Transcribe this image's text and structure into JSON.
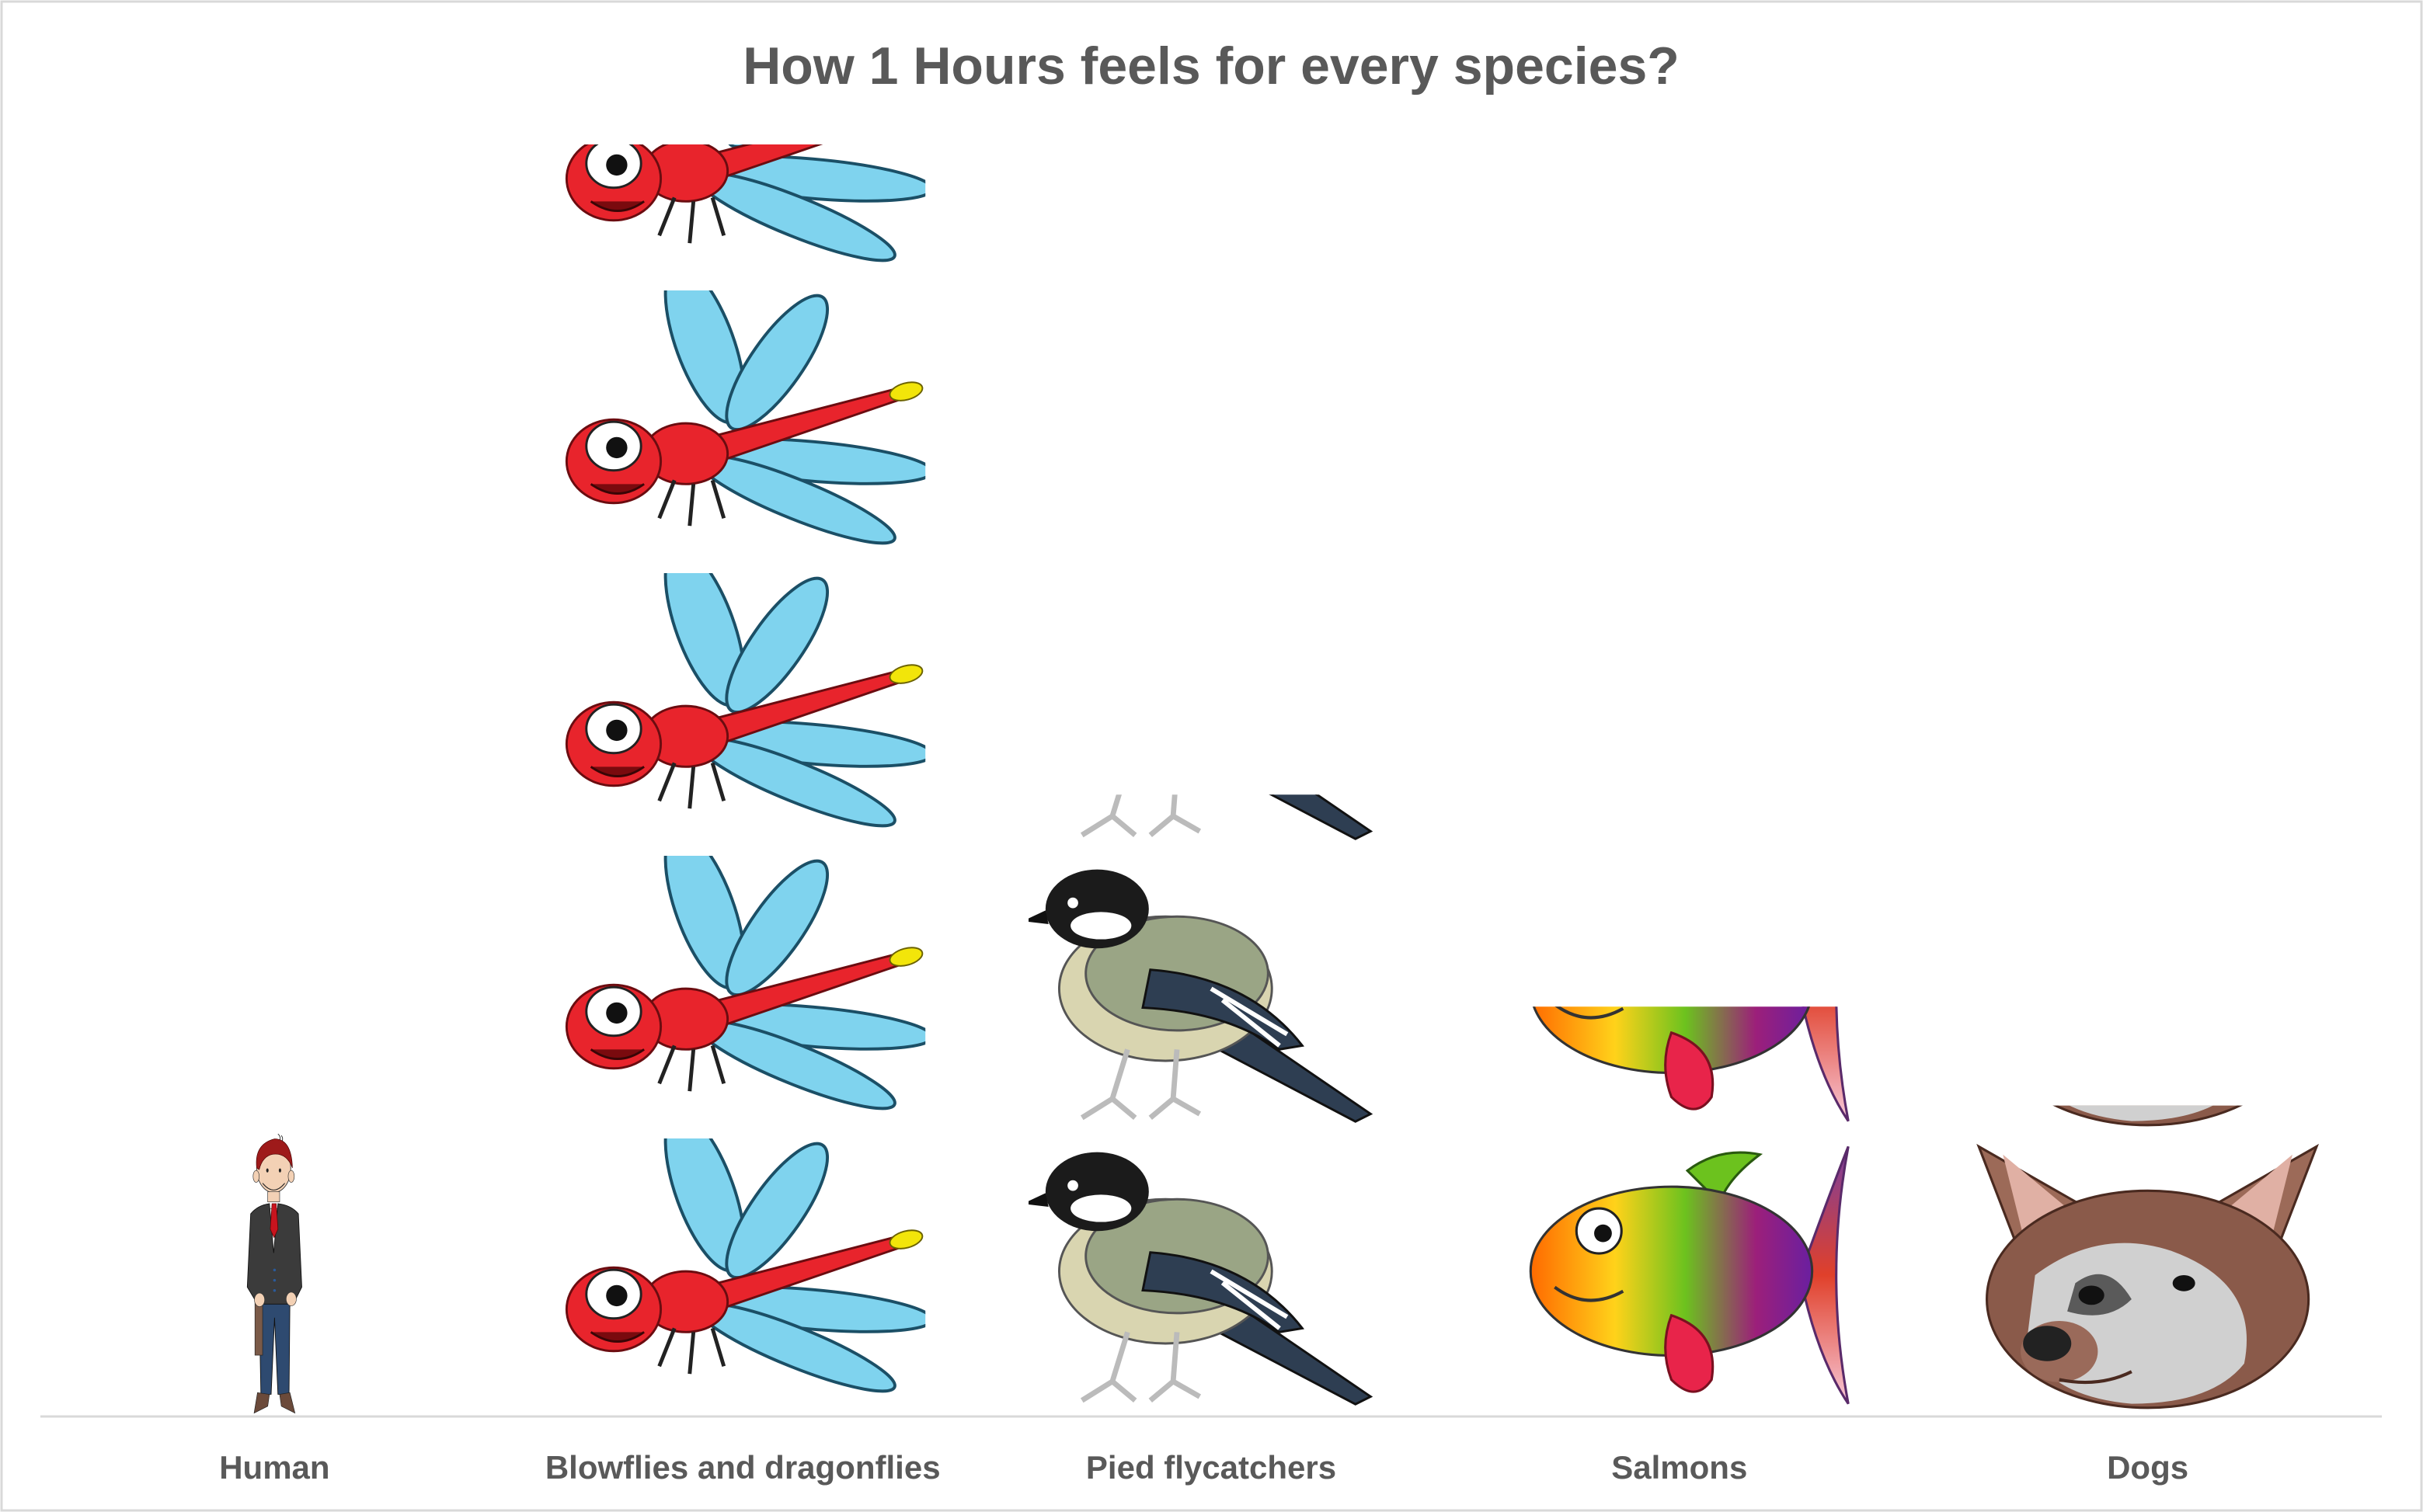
{
  "chart_data": {
    "type": "bar",
    "subtype": "pictograph",
    "title": "How 1 Hours feels for every species?",
    "categories": [
      "Human",
      "Blowflies and dragonflies",
      "Pied flycatchers",
      "Salmons",
      "Dogs"
    ],
    "values": [
      1,
      4.5,
      2.2,
      1.45,
      1.1
    ],
    "icons": [
      "businessman-icon",
      "dragonfly-icon",
      "bird-icon",
      "fish-icon",
      "dog-icon"
    ],
    "ylim": [
      0,
      4.5
    ],
    "xlabel": "",
    "ylabel": "",
    "grid": false,
    "legend": "none"
  },
  "colors": {
    "title": "#595959",
    "axis_labels": "#595959",
    "baseline": "#d9d9d9",
    "frame": "#d9d9d9",
    "dragonfly_body": "#e8242c",
    "dragonfly_wing": "#7fd3ee",
    "dragonfly_tail_tip": "#f2e50a",
    "suit": "#3b3b3b",
    "trousers": "#2e4a70",
    "hair": "#9e1a1a",
    "skin": "#f3d1b5",
    "tie": "#c8141e",
    "bird_body": "#9aa585",
    "bird_belly": "#d9d5b0",
    "bird_head": "#1b1b1b",
    "dog_fur": "#8a5a4a",
    "dog_face": "#d0d0d0"
  }
}
